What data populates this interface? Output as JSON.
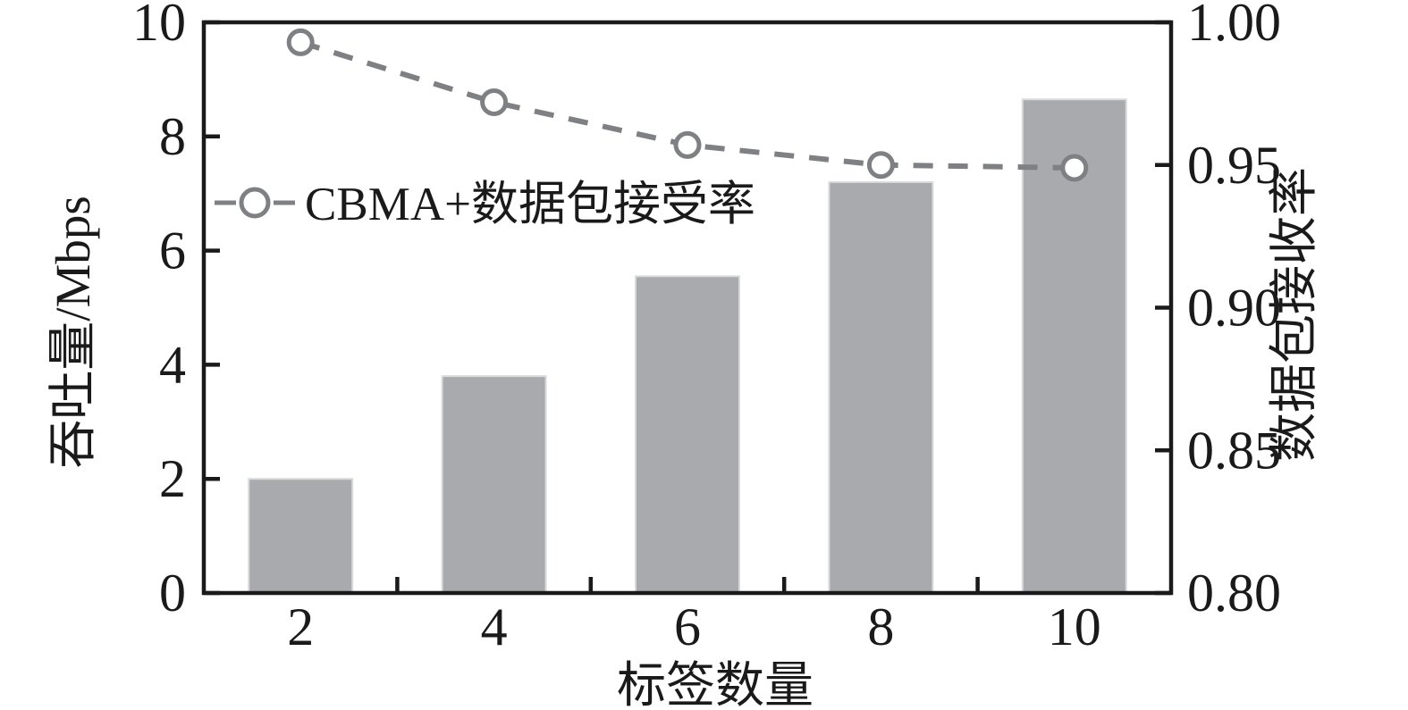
{
  "chart_data": {
    "type": "bar+line",
    "dual_axis": true,
    "categories": [
      "2",
      "4",
      "6",
      "8",
      "10"
    ],
    "series": [
      {
        "name": "throughput-bars",
        "type": "bar",
        "axis": "left",
        "values": [
          2.0,
          3.8,
          5.55,
          7.2,
          8.65
        ]
      },
      {
        "name": "CBMA+数据包接受率",
        "type": "line",
        "axis": "right",
        "line_style": "dashed",
        "marker": "open-circle",
        "values": [
          0.993,
          0.972,
          0.957,
          0.95,
          0.949
        ]
      }
    ],
    "xlabel": "标签数量",
    "ylabel_left": "吞吐量/Mbps",
    "ylabel_right": "数据包接收率",
    "y_left": {
      "min": 0,
      "max": 10,
      "ticks": [
        0,
        2,
        4,
        6,
        8,
        10
      ],
      "tick_labels": [
        "0",
        "2",
        "4",
        "6",
        "8",
        "10"
      ]
    },
    "y_right": {
      "min": 0.8,
      "max": 1.0,
      "ticks": [
        0.8,
        0.85,
        0.9,
        0.95,
        1.0
      ],
      "tick_labels": [
        "0.80",
        "0.85",
        "0.90",
        "0.95",
        "1.00"
      ]
    },
    "x_boundary_ticks": 4,
    "grid": false,
    "legend": {
      "label": "CBMA+数据包接受率",
      "marker": "dash-circle-dash",
      "position": "inside-upper-left"
    },
    "colors": {
      "bar": "#a8aaad",
      "bar_edge": "#d8dadc",
      "line": "#7e8083",
      "marker_fill": "#ffffff",
      "axis": "#1a1a1a",
      "text": "#1a1a1a"
    }
  }
}
